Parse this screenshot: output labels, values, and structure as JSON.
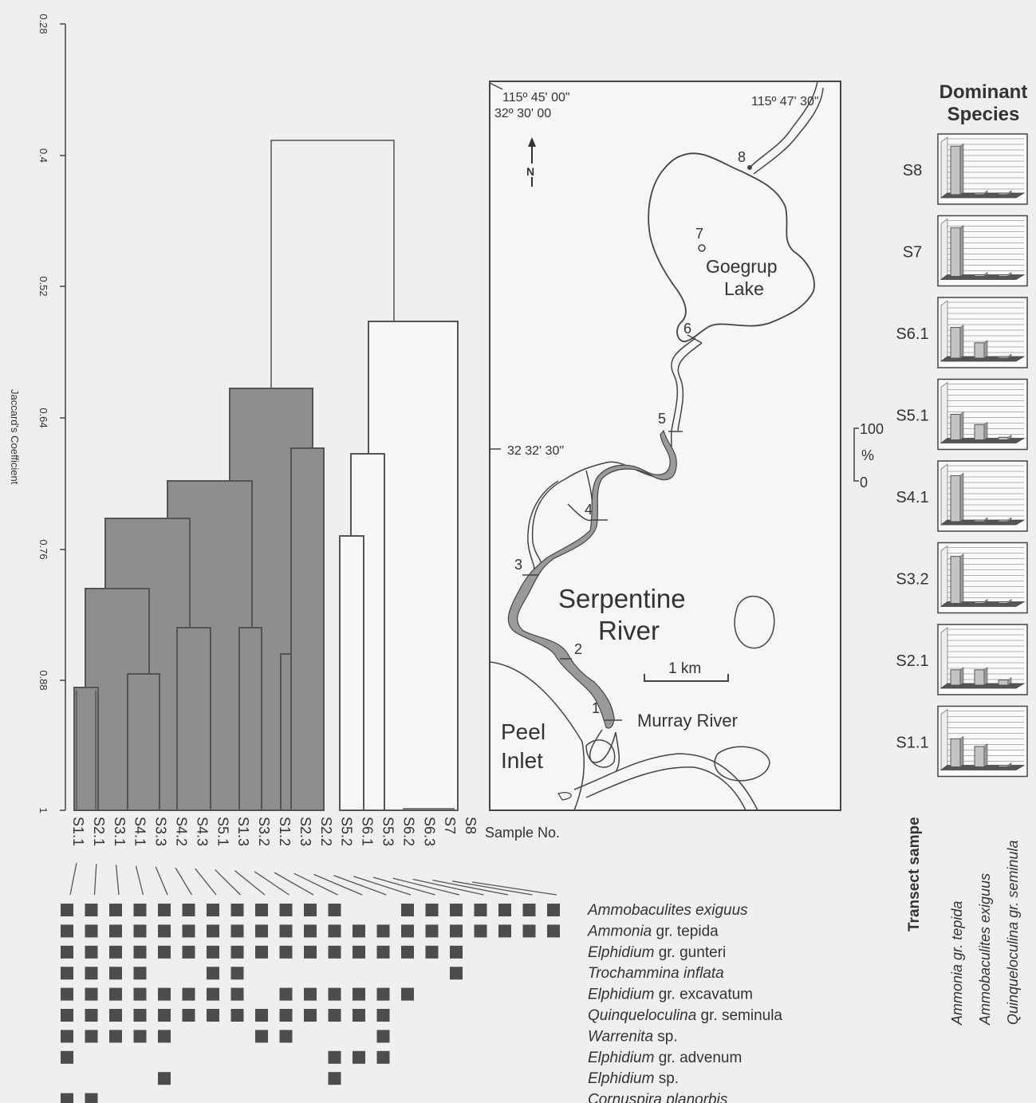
{
  "dendrogram": {
    "axis_label": "Jaccard's Coefficient",
    "ticks": [
      "0.28",
      "0.4",
      "0.52",
      "0.64",
      "0.76",
      "0.88",
      "1"
    ],
    "samples_label": "Sample No.",
    "samples": [
      "S1.1",
      "S2.1",
      "S3.1",
      "S4.1",
      "S3.3",
      "S4.2",
      "S4.3",
      "S5.1",
      "S1.3",
      "S3.2",
      "S1.2",
      "S2.3",
      "S2.2",
      "S5.2",
      "S6.1",
      "S5.3",
      "S6.2",
      "S6.3",
      "S7",
      "S8"
    ]
  },
  "chart_data": {
    "type": "dendrogram",
    "metric": "Jaccard's Coefficient",
    "axis_range": [
      0.28,
      1
    ],
    "leaves": [
      "S1.1",
      "S2.1",
      "S3.1",
      "S4.1",
      "S3.3",
      "S4.2",
      "S4.3",
      "S5.1",
      "S1.3",
      "S3.2",
      "S1.2",
      "S2.3",
      "S2.2",
      "S5.2",
      "S6.1",
      "S5.3",
      "S6.2",
      "S6.3",
      "S7",
      "S8"
    ],
    "clusters": [
      {
        "group": "shaded",
        "members": [
          "S1.1",
          "S2.1",
          "S3.1",
          "S4.1",
          "S3.3",
          "S4.2",
          "S4.3",
          "S5.1",
          "S1.3",
          "S3.2",
          "S1.2",
          "S2.3",
          "S2.2"
        ],
        "join_level": 0.63
      },
      {
        "group": "open",
        "members": [
          "S5.2",
          "S6.1",
          "S5.3",
          "S6.2",
          "S6.3",
          "S7",
          "S8"
        ],
        "join_level": 0.55
      },
      {
        "group": "all",
        "join_level": 0.41
      }
    ]
  },
  "map": {
    "coord_tl_lon": "115º 45' 00\"",
    "coord_tl_lat": "32º 30' 00",
    "coord_tr_lon": "115º 47' 30\"",
    "coord_mid_lat": "32 32' 30\"",
    "north": "N",
    "lake_line1": "Goegrup",
    "lake_line2": "Lake",
    "river_line1": "Serpentine",
    "river_line2": "River",
    "scale": "1 km",
    "murray": "Murray River",
    "peel_line1": "Peel",
    "peel_line2": "Inlet",
    "stations": [
      "1",
      "2",
      "3",
      "4",
      "5",
      "6",
      "7",
      "8"
    ]
  },
  "pct_scale": {
    "top": "100",
    "unit": "%",
    "bottom": "0"
  },
  "dominant": {
    "title_line1": "Dominant",
    "title_line2": "Species",
    "axis_title": "Transect sampe",
    "species": [
      "Ammonia gr. tepida",
      "Ammobaculites exiguus",
      "Quinqueloculina gr. seminula"
    ],
    "panels": [
      {
        "label": "S8",
        "values": [
          95,
          3,
          2
        ]
      },
      {
        "label": "S7",
        "values": [
          95,
          3,
          2
        ]
      },
      {
        "label": "S6.1",
        "values": [
          60,
          30,
          3
        ]
      },
      {
        "label": "S5.1",
        "values": [
          50,
          30,
          5
        ]
      },
      {
        "label": "S4.1",
        "values": [
          90,
          3,
          3
        ]
      },
      {
        "label": "S3.2",
        "values": [
          92,
          3,
          3
        ]
      },
      {
        "label": "S2.1",
        "values": [
          30,
          30,
          10
        ]
      },
      {
        "label": "S1.1",
        "values": [
          55,
          40,
          3
        ]
      }
    ]
  },
  "presence": {
    "species": [
      {
        "genus": "Ammobaculites exiguus",
        "suffix": "",
        "cols": [
          1,
          2,
          3,
          4,
          5,
          6,
          7,
          8,
          9,
          10,
          11,
          12,
          15,
          16,
          17,
          18,
          19,
          20,
          21
        ]
      },
      {
        "genus": "Ammonia",
        "suffix": " gr. tepida",
        "cols": [
          1,
          2,
          3,
          4,
          5,
          6,
          7,
          8,
          9,
          10,
          11,
          12,
          13,
          14,
          15,
          16,
          17,
          18,
          19,
          20,
          21
        ]
      },
      {
        "genus": "Elphidium",
        "suffix": " gr. gunteri",
        "cols": [
          1,
          2,
          3,
          4,
          5,
          6,
          7,
          8,
          9,
          10,
          11,
          12,
          13,
          14,
          15,
          16,
          17
        ]
      },
      {
        "genus": "Trochammina inflata",
        "suffix": "",
        "cols": [
          1,
          2,
          3,
          4,
          7,
          8,
          17
        ]
      },
      {
        "genus": "Elphidium",
        "suffix": " gr. excavatum",
        "cols": [
          1,
          2,
          3,
          4,
          5,
          6,
          7,
          8,
          10,
          11,
          12,
          13,
          14,
          15
        ]
      },
      {
        "genus": "Quinqueloculina",
        "suffix": " gr. seminula",
        "cols": [
          1,
          2,
          3,
          4,
          5,
          6,
          7,
          8,
          9,
          10,
          11,
          12,
          13,
          14
        ]
      },
      {
        "genus": "Warrenita",
        "suffix": " sp.",
        "cols": [
          1,
          2,
          3,
          4,
          5,
          9,
          10,
          14
        ]
      },
      {
        "genus": "Elphidium",
        "suffix": " gr. advenum",
        "cols": [
          1,
          12,
          13,
          14
        ]
      },
      {
        "genus": "Elphidium",
        "suffix": " sp.",
        "cols": [
          5,
          12
        ]
      },
      {
        "genus": "Cornuspira planorbis",
        "suffix": "",
        "cols": [
          1,
          2
        ]
      }
    ]
  }
}
